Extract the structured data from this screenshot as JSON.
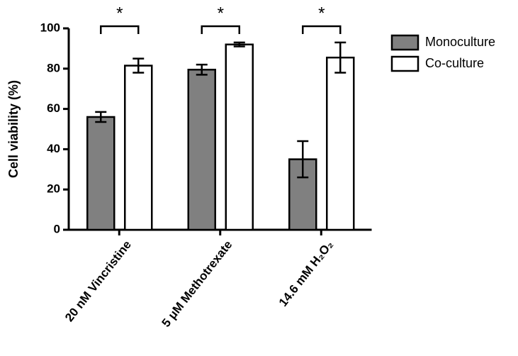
{
  "chart_data": {
    "type": "bar",
    "y_label": "Cell viability (%)",
    "categories": [
      "20 nM Vincristine",
      "5 μM Methotrexate",
      "14.6 mM H₂O₂"
    ],
    "series": [
      {
        "name": "Monoculture",
        "color": "#808080",
        "values": [
          56,
          79.5,
          35
        ],
        "errors": [
          2.5,
          2.5,
          9
        ]
      },
      {
        "name": "Co-culture",
        "color": "#ffffff",
        "values": [
          81.5,
          92,
          85.5
        ],
        "errors": [
          3.5,
          1,
          7.5
        ]
      }
    ],
    "annotations": [
      "*",
      "*",
      "*"
    ],
    "ylim": [
      0,
      100
    ],
    "yticks": [
      0,
      20,
      40,
      60,
      80,
      100
    ],
    "legend": "right"
  }
}
